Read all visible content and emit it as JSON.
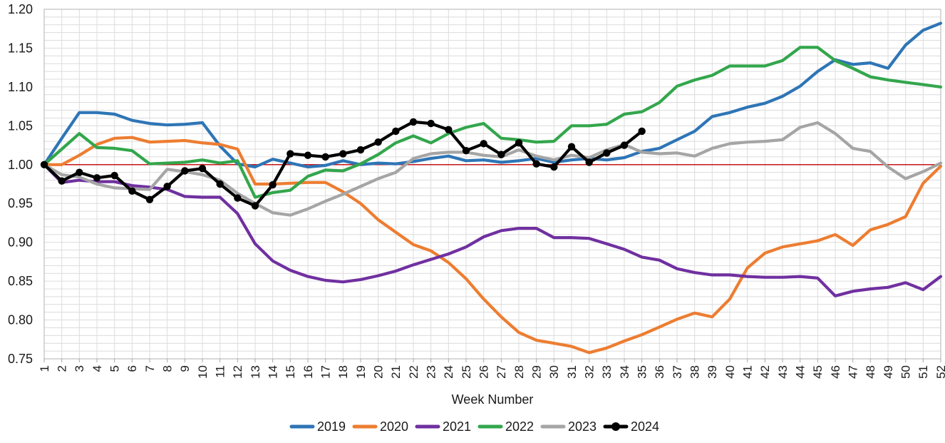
{
  "chart_data": {
    "type": "line",
    "title": "",
    "xlabel": "Week Number",
    "ylabel": "",
    "x_tick_labels": [
      "1",
      "2",
      "3",
      "4",
      "5",
      "6",
      "7",
      "8",
      "9",
      "10",
      "11",
      "12",
      "13",
      "14",
      "15",
      "16",
      "17",
      "18",
      "19",
      "20",
      "21",
      "22",
      "23",
      "24",
      "25",
      "26",
      "27",
      "28",
      "29",
      "30",
      "31",
      "32",
      "33",
      "34",
      "35",
      "36",
      "37",
      "38",
      "39",
      "40",
      "41",
      "42",
      "43",
      "44",
      "45",
      "46",
      "47",
      "48",
      "49",
      "50",
      "51",
      "52"
    ],
    "y_tick_labels": [
      "1.20",
      "1.15",
      "1.10",
      "1.05",
      "1.00",
      "0.95",
      "0.90",
      "0.85",
      "0.80",
      "0.75"
    ],
    "ylim": [
      0.75,
      1.2
    ],
    "xlim": [
      1,
      52
    ],
    "y_minor_step": 0.01,
    "grid": true,
    "reference_line": {
      "value": 1.0,
      "color": "#C00000"
    },
    "legend_position": "bottom",
    "colors": {
      "grid_minor": "#DCDCDC",
      "plot_border": "#BFBFBF",
      "tick": "#A6A6A6",
      "text": "#1a1a1a"
    },
    "series": [
      {
        "name": "2019",
        "color": "#2E75B6",
        "marker": "none",
        "values": [
          1.0,
          1.034,
          1.067,
          1.067,
          1.065,
          1.057,
          1.053,
          1.051,
          1.052,
          1.054,
          1.024,
          1.001,
          0.997,
          1.007,
          1.002,
          0.997,
          0.999,
          1.005,
          1.0,
          1.002,
          1.001,
          1.004,
          1.008,
          1.011,
          1.005,
          1.006,
          1.003,
          1.005,
          1.008,
          1.003,
          1.006,
          1.008,
          1.006,
          1.009,
          1.017,
          1.021,
          1.032,
          1.043,
          1.062,
          1.067,
          1.074,
          1.079,
          1.088,
          1.101,
          1.12,
          1.135,
          1.129,
          1.131,
          1.124,
          1.154,
          1.173,
          1.182
        ]
      },
      {
        "name": "2020",
        "color": "#ED7D31",
        "marker": "none",
        "values": [
          1.0,
          1.0,
          1.012,
          1.026,
          1.034,
          1.035,
          1.029,
          1.03,
          1.031,
          1.028,
          1.026,
          1.02,
          0.975,
          0.975,
          0.976,
          0.977,
          0.977,
          0.965,
          0.95,
          0.929,
          0.913,
          0.897,
          0.889,
          0.874,
          0.853,
          0.827,
          0.804,
          0.784,
          0.774,
          0.77,
          0.766,
          0.758,
          0.764,
          0.773,
          0.781,
          0.791,
          0.801,
          0.809,
          0.804,
          0.827,
          0.867,
          0.886,
          0.894,
          0.898,
          0.902,
          0.91,
          0.896,
          0.916,
          0.923,
          0.933,
          0.976,
          0.998
        ]
      },
      {
        "name": "2021",
        "color": "#7030A0",
        "marker": "none",
        "values": [
          1.0,
          0.977,
          0.98,
          0.978,
          0.978,
          0.973,
          0.971,
          0.968,
          0.959,
          0.958,
          0.958,
          0.937,
          0.898,
          0.876,
          0.864,
          0.856,
          0.851,
          0.849,
          0.852,
          0.857,
          0.863,
          0.871,
          0.878,
          0.885,
          0.894,
          0.907,
          0.915,
          0.918,
          0.918,
          0.906,
          0.906,
          0.905,
          0.898,
          0.891,
          0.881,
          0.877,
          0.866,
          0.861,
          0.858,
          0.858,
          0.856,
          0.855,
          0.855,
          0.856,
          0.854,
          0.831,
          0.837,
          0.84,
          0.842,
          0.848,
          0.839,
          0.856
        ]
      },
      {
        "name": "2022",
        "color": "#33A64C",
        "marker": "none",
        "values": [
          1.0,
          1.02,
          1.04,
          1.022,
          1.021,
          1.018,
          1.001,
          1.002,
          1.003,
          1.006,
          1.002,
          1.005,
          0.958,
          0.964,
          0.967,
          0.985,
          0.993,
          0.992,
          1.001,
          1.013,
          1.028,
          1.037,
          1.028,
          1.04,
          1.048,
          1.053,
          1.034,
          1.032,
          1.029,
          1.03,
          1.05,
          1.05,
          1.052,
          1.065,
          1.068,
          1.08,
          1.101,
          1.109,
          1.115,
          1.127,
          1.127,
          1.127,
          1.134,
          1.151,
          1.151,
          1.134,
          1.124,
          1.113,
          1.109,
          1.106,
          1.103,
          1.1
        ]
      },
      {
        "name": "2023",
        "color": "#A5A5A5",
        "marker": "none",
        "values": [
          1.0,
          0.987,
          0.984,
          0.975,
          0.97,
          0.969,
          0.968,
          0.994,
          0.991,
          0.987,
          0.98,
          0.963,
          0.95,
          0.938,
          0.935,
          0.943,
          0.953,
          0.962,
          0.972,
          0.982,
          0.99,
          1.008,
          1.014,
          1.016,
          1.016,
          1.012,
          1.01,
          1.019,
          1.011,
          1.006,
          1.012,
          1.009,
          1.019,
          1.026,
          1.016,
          1.014,
          1.015,
          1.011,
          1.021,
          1.027,
          1.029,
          1.03,
          1.032,
          1.048,
          1.054,
          1.04,
          1.021,
          1.017,
          0.997,
          0.982,
          0.991,
          1.002
        ]
      },
      {
        "name": "2024",
        "color": "#000000",
        "marker": "circle",
        "values": [
          1.0,
          0.979,
          0.99,
          0.983,
          0.986,
          0.966,
          0.955,
          0.972,
          0.992,
          0.995,
          0.975,
          0.957,
          0.947,
          0.974,
          1.014,
          1.012,
          1.01,
          1.014,
          1.019,
          1.029,
          1.043,
          1.055,
          1.053,
          1.045,
          1.018,
          1.027,
          1.013,
          1.028,
          1.001,
          0.997,
          1.023,
          1.003,
          1.015,
          1.025,
          1.043
        ]
      }
    ]
  },
  "legend": {
    "items": [
      {
        "label": "2019"
      },
      {
        "label": "2020"
      },
      {
        "label": "2021"
      },
      {
        "label": "2022"
      },
      {
        "label": "2023"
      },
      {
        "label": "2024"
      }
    ]
  },
  "axis": {
    "x_title": "Week Number"
  }
}
